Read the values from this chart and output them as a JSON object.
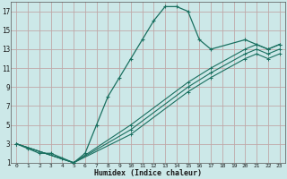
{
  "xlabel": "Humidex (Indice chaleur)",
  "bg_color": "#cce8e8",
  "grid_color": "#c0a8a8",
  "line_color": "#1a7060",
  "xlim": [
    -0.5,
    23.5
  ],
  "ylim": [
    1,
    18
  ],
  "xtick_labels": [
    "0",
    "1",
    "2",
    "3",
    "4",
    "5",
    "6",
    "7",
    "8",
    "9",
    "10",
    "11",
    "12",
    "13",
    "14",
    "15",
    "16",
    "17",
    "18",
    "19",
    "20",
    "21",
    "22",
    "23"
  ],
  "xtick_vals": [
    0,
    1,
    2,
    3,
    4,
    5,
    6,
    7,
    8,
    9,
    10,
    11,
    12,
    13,
    14,
    15,
    16,
    17,
    18,
    19,
    20,
    21,
    22,
    23
  ],
  "ytick_vals": [
    1,
    3,
    5,
    7,
    9,
    11,
    13,
    15,
    17
  ],
  "curve1_x": [
    0,
    1,
    2,
    3,
    4,
    5,
    6,
    7,
    8,
    9,
    10,
    11,
    12,
    13,
    14,
    15,
    16,
    17,
    20,
    21,
    22,
    23
  ],
  "curve1_y": [
    3,
    2.5,
    2,
    2,
    1.5,
    1,
    2,
    5,
    8,
    10,
    12,
    14,
    16,
    17.5,
    17.5,
    17,
    14,
    13,
    14,
    13.5,
    13,
    13.5
  ],
  "curve2_x": [
    0,
    5,
    10,
    15,
    17,
    20,
    21,
    22,
    23
  ],
  "curve2_y": [
    3,
    1,
    5,
    9.5,
    11,
    13,
    13.5,
    13,
    13.5
  ],
  "curve3_x": [
    0,
    5,
    10,
    15,
    17,
    20,
    21,
    22,
    23
  ],
  "curve3_y": [
    3,
    1,
    4.5,
    9.0,
    10.5,
    12.5,
    13,
    12.5,
    13
  ],
  "curve4_x": [
    0,
    5,
    10,
    15,
    17,
    20,
    21,
    22,
    23
  ],
  "curve4_y": [
    3,
    1,
    4.0,
    8.5,
    10.0,
    12.0,
    12.5,
    12.0,
    12.5
  ]
}
